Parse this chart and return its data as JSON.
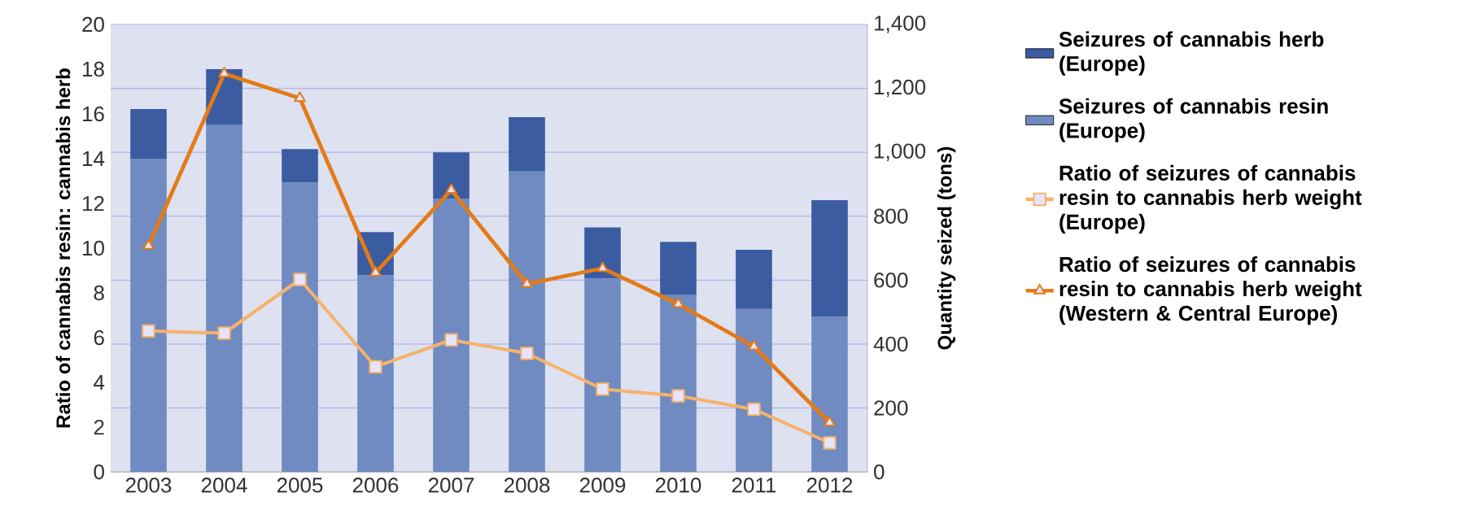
{
  "chart_data": {
    "type": "bar",
    "stacked": true,
    "categories": [
      "2003",
      "2004",
      "2005",
      "2006",
      "2007",
      "2008",
      "2009",
      "2010",
      "2011",
      "2012"
    ],
    "ylabel": "Ratio of cannabis resin: cannabis herb",
    "y2label": "Quantity seized (tons)",
    "ylim": [
      0,
      20
    ],
    "yticks": [
      0,
      2,
      4,
      6,
      8,
      10,
      12,
      14,
      16,
      18,
      20
    ],
    "y2lim": [
      0,
      1400
    ],
    "y2ticks": [
      0,
      200,
      400,
      600,
      800,
      {
        "value": 1000,
        "label": "1,000"
      },
      {
        "value": 1200,
        "label": "1,200"
      },
      {
        "value": 1400,
        "label": "1,400"
      }
    ],
    "grid": "y",
    "legend": "right",
    "series": [
      {
        "name": "Seizures of cannabis resin (Europe)",
        "axis": "y2",
        "color": "#6f8bc1",
        "values": [
          980,
          1085,
          905,
          615,
          855,
          940,
          605,
          555,
          510,
          485
        ]
      },
      {
        "name": "Seizures of cannabis herb (Europe)",
        "axis": "y2",
        "color": "#3b5ca1",
        "values": [
          155,
          175,
          105,
          135,
          145,
          170,
          160,
          165,
          185,
          365
        ]
      },
      {
        "name": "Ratio of seizures of cannabis resin to cannabis herb weight (Europe)",
        "type": "line",
        "marker": "square",
        "color": "#f6b26b",
        "values": [
          6.3,
          6.2,
          8.6,
          4.7,
          5.9,
          5.3,
          3.7,
          3.4,
          2.8,
          1.3
        ]
      },
      {
        "name": "Ratio of seizures of cannabis resin to cannabis herb weight (Western & Central Europe)",
        "type": "line",
        "marker": "triangle",
        "color": "#e57a17",
        "values": [
          10.1,
          17.8,
          16.7,
          8.9,
          12.6,
          8.4,
          9.1,
          7.5,
          5.6,
          2.2
        ]
      }
    ]
  }
}
